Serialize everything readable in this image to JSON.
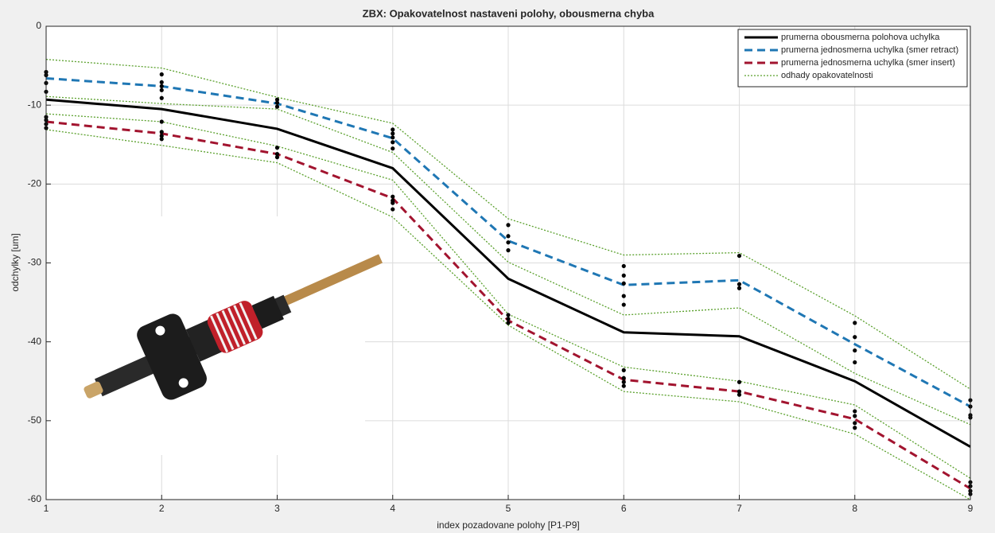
{
  "chart_data": {
    "type": "line",
    "title": "ZBX: Opakovatelnost nastaveni polohy, obousmerna chyba",
    "x_label": "index pozadovane polohy [P1-P9]",
    "y_label": "odchylky [um]",
    "x": [
      1,
      2,
      3,
      4,
      5,
      6,
      7,
      8,
      9
    ],
    "xlim": [
      1,
      9
    ],
    "xticks": [
      1,
      2,
      3,
      4,
      5,
      6,
      7,
      8,
      9
    ],
    "ylim": [
      -60,
      0
    ],
    "yticks": [
      -60,
      -50,
      -40,
      -30,
      -20,
      -10,
      0
    ],
    "grid": true,
    "legend": "top-right",
    "series": [
      {
        "name": "prumerna obousmerna polohova uchylka",
        "color": "#000000",
        "dash": "solid",
        "values": [
          -9.3,
          -10.5,
          -13,
          -18,
          -32,
          -38.8,
          -39.3,
          -45,
          -53.3
        ]
      },
      {
        "name": "prumerna jednosmerna uchylka (smer retract)",
        "color": "#1f77b4",
        "dash": "dashed",
        "values": [
          -6.6,
          -7.6,
          -9.8,
          -14.2,
          -27.2,
          -32.8,
          -32.2,
          -40.3,
          -48.2
        ]
      },
      {
        "name": "prumerna jednosmerna uchylka (smer insert)",
        "color": "#a2142f",
        "dash": "dashed",
        "values": [
          -12.1,
          -13.6,
          -16.2,
          -21.8,
          -37.3,
          -44.8,
          -46.3,
          -49.8,
          -58.6
        ]
      }
    ],
    "bounds": {
      "name": "odhady opakovatelnosti",
      "color": "#5aa02c",
      "lines": [
        [
          -4.2,
          -5.3,
          -9,
          -12.3,
          -24.4,
          -29,
          -28.7,
          -36.7,
          -46
        ],
        [
          -8.9,
          -9.8,
          -10.5,
          -16,
          -29.9,
          -36.6,
          -35.7,
          -44,
          -50.5
        ],
        [
          -11.1,
          -12.1,
          -15.2,
          -19.5,
          -36.5,
          -43.2,
          -45,
          -48,
          -57.3
        ],
        [
          -13.1,
          -15.1,
          -17.3,
          -24.2,
          -37.9,
          -46.3,
          -47.6,
          -51.7,
          -60
        ]
      ]
    },
    "samples": [
      {
        "x": 1,
        "values": [
          -5.8,
          -6.2,
          -7.2,
          -8.3,
          -11.5,
          -11.9,
          -12.4,
          -12.9
        ]
      },
      {
        "x": 2,
        "values": [
          -6.1,
          -7.1,
          -7.6,
          -8.1,
          -9.1,
          -12.1,
          -13.4,
          -13.9,
          -14.3
        ]
      },
      {
        "x": 3,
        "values": [
          -9.3,
          -9.7,
          -10.2,
          -15.4,
          -16.2,
          -16.6
        ]
      },
      {
        "x": 4,
        "values": [
          -13.1,
          -13.6,
          -14.1,
          -14.7,
          -15.5,
          -21.6,
          -22.1,
          -22.4,
          -23.2
        ]
      },
      {
        "x": 5,
        "values": [
          -25.2,
          -26.6,
          -27.4,
          -28.4,
          -36.6,
          -37.1,
          -37.6
        ]
      },
      {
        "x": 6,
        "values": [
          -30.4,
          -31.6,
          -32.6,
          -34.2,
          -35.3,
          -43.6,
          -44.6,
          -45.1,
          -45.6
        ]
      },
      {
        "x": 7,
        "values": [
          -29.1,
          -32.7,
          -33.2,
          -45.1,
          -46.3,
          -46.7
        ]
      },
      {
        "x": 8,
        "values": [
          -37.6,
          -39.4,
          -41.1,
          -42.6,
          -48.8,
          -49.4,
          -50.3,
          -50.9
        ]
      },
      {
        "x": 9,
        "values": [
          -47.4,
          -48.2,
          -49.3,
          -49.6,
          -57.8,
          -58.3,
          -58.9,
          -59.3
        ]
      }
    ]
  }
}
